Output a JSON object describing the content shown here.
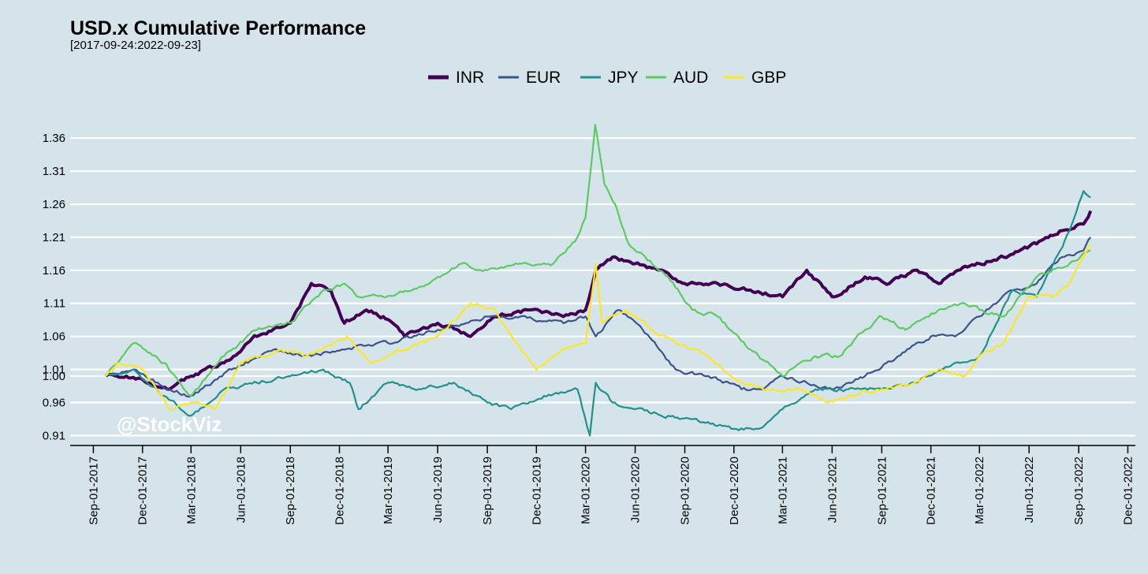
{
  "chart_data": {
    "type": "line",
    "title": "USD.x Cumulative Performance",
    "subtitle": "[2017-09-24:2022-09-23]",
    "watermark": "@StockViz",
    "legend_position": "top",
    "grid": "horizontal",
    "xlim": [
      "2017-07-20",
      "2022-12-15"
    ],
    "ylim": [
      0.895,
      1.39
    ],
    "y_ticks": [
      0.91,
      0.96,
      1.0,
      1.01,
      1.06,
      1.11,
      1.16,
      1.21,
      1.26,
      1.31,
      1.36
    ],
    "y_tick_labels": [
      "0.91",
      "0.96",
      "1.00",
      "1.01",
      "1.06",
      "1.11",
      "1.16",
      "1.21",
      "1.26",
      "1.31",
      "1.36"
    ],
    "x_ticks": [
      "2017-09-01",
      "2017-12-01",
      "2018-03-01",
      "2018-06-01",
      "2018-09-01",
      "2018-12-01",
      "2019-03-01",
      "2019-06-01",
      "2019-09-01",
      "2019-12-01",
      "2020-03-01",
      "2020-06-01",
      "2020-09-01",
      "2020-12-01",
      "2021-03-01",
      "2021-06-01",
      "2021-09-01",
      "2021-12-01",
      "2022-03-01",
      "2022-06-01",
      "2022-09-01",
      "2022-12-01"
    ],
    "x_tick_labels": [
      "Sep-01-2017",
      "Dec-01-2017",
      "Mar-01-2018",
      "Jun-01-2018",
      "Sep-01-2018",
      "Dec-01-2018",
      "Mar-01-2019",
      "Jun-01-2019",
      "Sep-01-2019",
      "Dec-01-2019",
      "Mar-01-2020",
      "Jun-01-2020",
      "Sep-01-2020",
      "Dec-01-2020",
      "Mar-01-2021",
      "Jun-01-2021",
      "Sep-01-2021",
      "Dec-01-2021",
      "Mar-01-2022",
      "Jun-01-2022",
      "Sep-01-2022",
      "Dec-01-2022"
    ],
    "series": [
      {
        "name": "INR",
        "color": "#440154",
        "width": 4,
        "x": [
          "2017-09-24",
          "2017-11-01",
          "2017-12-15",
          "2018-01-20",
          "2018-03-01",
          "2018-05-01",
          "2018-07-01",
          "2018-09-01",
          "2018-10-10",
          "2018-11-15",
          "2018-12-10",
          "2019-01-20",
          "2019-02-20",
          "2019-04-01",
          "2019-06-01",
          "2019-08-01",
          "2019-09-15",
          "2019-11-15",
          "2020-01-20",
          "2020-03-01",
          "2020-03-20",
          "2020-04-20",
          "2020-06-01",
          "2020-07-15",
          "2020-09-01",
          "2020-11-01",
          "2021-01-01",
          "2021-03-01",
          "2021-04-15",
          "2021-06-01",
          "2021-08-01",
          "2021-09-15",
          "2021-11-01",
          "2021-12-15",
          "2022-01-20",
          "2022-03-01",
          "2022-04-15",
          "2022-06-15",
          "2022-08-01",
          "2022-09-10",
          "2022-09-23"
        ],
        "y": [
          1.0,
          1.0,
          0.99,
          0.98,
          1.0,
          1.02,
          1.06,
          1.08,
          1.14,
          1.13,
          1.08,
          1.1,
          1.09,
          1.06,
          1.08,
          1.06,
          1.09,
          1.1,
          1.09,
          1.1,
          1.16,
          1.18,
          1.17,
          1.16,
          1.14,
          1.14,
          1.13,
          1.12,
          1.16,
          1.12,
          1.15,
          1.14,
          1.16,
          1.14,
          1.16,
          1.17,
          1.18,
          1.2,
          1.22,
          1.23,
          1.25
        ]
      },
      {
        "name": "EUR",
        "color": "#3b528b",
        "width": 2.2,
        "x": [
          "2017-09-24",
          "2017-11-15",
          "2018-01-20",
          "2018-03-01",
          "2018-05-15",
          "2018-08-01",
          "2018-10-01",
          "2018-12-10",
          "2019-03-01",
          "2019-06-01",
          "2019-09-01",
          "2019-11-01",
          "2020-01-20",
          "2020-03-01",
          "2020-03-20",
          "2020-05-01",
          "2020-06-15",
          "2020-08-15",
          "2020-10-15",
          "2020-12-15",
          "2021-01-20",
          "2021-03-01",
          "2021-04-15",
          "2021-06-01",
          "2021-08-01",
          "2021-10-01",
          "2021-12-01",
          "2022-01-15",
          "2022-03-01",
          "2022-05-01",
          "2022-06-15",
          "2022-08-01",
          "2022-09-10",
          "2022-09-23"
        ],
        "y": [
          1.0,
          1.01,
          0.98,
          0.97,
          1.01,
          1.04,
          1.03,
          1.04,
          1.05,
          1.07,
          1.09,
          1.09,
          1.08,
          1.09,
          1.06,
          1.1,
          1.07,
          1.01,
          1.0,
          0.98,
          0.98,
          1.0,
          0.99,
          0.98,
          1.0,
          1.03,
          1.06,
          1.06,
          1.09,
          1.13,
          1.14,
          1.18,
          1.19,
          1.21
        ]
      },
      {
        "name": "JPY",
        "color": "#21908c",
        "width": 2.2,
        "x": [
          "2017-09-24",
          "2017-11-15",
          "2018-01-10",
          "2018-03-01",
          "2018-05-01",
          "2018-07-01",
          "2018-09-01",
          "2018-11-01",
          "2018-12-20",
          "2019-01-05",
          "2019-03-01",
          "2019-05-01",
          "2019-07-01",
          "2019-09-01",
          "2019-10-15",
          "2019-12-15",
          "2020-02-15",
          "2020-03-09",
          "2020-03-20",
          "2020-04-20",
          "2020-06-01",
          "2020-08-01",
          "2020-10-01",
          "2020-12-01",
          "2021-01-15",
          "2021-03-01",
          "2021-05-01",
          "2021-07-01",
          "2021-09-01",
          "2021-11-01",
          "2022-01-15",
          "2022-03-01",
          "2022-05-01",
          "2022-06-15",
          "2022-08-15",
          "2022-09-10",
          "2022-09-23"
        ],
        "y": [
          1.0,
          1.01,
          0.97,
          0.94,
          0.98,
          0.99,
          1.0,
          1.01,
          0.99,
          0.95,
          0.99,
          0.98,
          0.99,
          0.96,
          0.95,
          0.97,
          0.98,
          0.91,
          0.99,
          0.96,
          0.95,
          0.94,
          0.93,
          0.92,
          0.92,
          0.95,
          0.98,
          0.98,
          0.98,
          0.99,
          1.02,
          1.03,
          1.13,
          1.12,
          1.22,
          1.28,
          1.27
        ]
      },
      {
        "name": "AUD",
        "color": "#5ec962",
        "width": 2.2,
        "x": [
          "2017-09-24",
          "2017-11-15",
          "2018-01-10",
          "2018-03-01",
          "2018-05-01",
          "2018-07-01",
          "2018-09-01",
          "2018-11-01",
          "2018-12-10",
          "2019-01-03",
          "2019-02-20",
          "2019-04-15",
          "2019-06-01",
          "2019-07-15",
          "2019-09-01",
          "2019-11-01",
          "2020-01-01",
          "2020-02-15",
          "2020-03-01",
          "2020-03-19",
          "2020-04-05",
          "2020-04-25",
          "2020-05-20",
          "2020-06-20",
          "2020-08-01",
          "2020-09-15",
          "2020-11-01",
          "2021-01-01",
          "2021-03-01",
          "2021-05-01",
          "2021-06-15",
          "2021-08-01",
          "2021-09-01",
          "2021-10-15",
          "2021-12-15",
          "2022-02-01",
          "2022-03-01",
          "2022-04-15",
          "2022-06-15",
          "2022-08-15",
          "2022-09-23"
        ],
        "y": [
          1.0,
          1.05,
          1.02,
          0.97,
          1.03,
          1.07,
          1.08,
          1.13,
          1.14,
          1.12,
          1.12,
          1.13,
          1.15,
          1.17,
          1.16,
          1.17,
          1.17,
          1.21,
          1.24,
          1.38,
          1.29,
          1.26,
          1.2,
          1.18,
          1.15,
          1.1,
          1.09,
          1.04,
          1.0,
          1.03,
          1.03,
          1.07,
          1.09,
          1.07,
          1.1,
          1.11,
          1.1,
          1.09,
          1.15,
          1.17,
          1.19
        ]
      },
      {
        "name": "GBP",
        "color": "#fde725",
        "width": 2.2,
        "x": [
          "2017-09-24",
          "2017-10-15",
          "2017-12-01",
          "2018-01-20",
          "2018-03-01",
          "2018-04-15",
          "2018-06-01",
          "2018-08-15",
          "2018-10-01",
          "2018-12-15",
          "2019-02-01",
          "2019-04-01",
          "2019-06-01",
          "2019-08-01",
          "2019-09-15",
          "2019-10-25",
          "2019-12-01",
          "2020-01-20",
          "2020-03-01",
          "2020-03-20",
          "2020-04-01",
          "2020-05-15",
          "2020-07-01",
          "2020-08-15",
          "2020-10-15",
          "2020-12-15",
          "2021-02-01",
          "2021-04-01",
          "2021-05-25",
          "2021-07-01",
          "2021-09-01",
          "2021-11-01",
          "2021-12-15",
          "2022-02-01",
          "2022-03-01",
          "2022-04-15",
          "2022-06-01",
          "2022-07-15",
          "2022-08-15",
          "2022-09-23"
        ],
        "y": [
          1.0,
          1.02,
          1.01,
          0.95,
          0.96,
          0.95,
          1.02,
          1.04,
          1.03,
          1.06,
          1.02,
          1.04,
          1.06,
          1.11,
          1.1,
          1.05,
          1.01,
          1.04,
          1.05,
          1.17,
          1.08,
          1.1,
          1.07,
          1.05,
          1.03,
          0.99,
          0.98,
          0.98,
          0.96,
          0.97,
          0.98,
          0.99,
          1.01,
          1.0,
          1.03,
          1.05,
          1.12,
          1.12,
          1.14,
          1.2
        ]
      }
    ]
  }
}
